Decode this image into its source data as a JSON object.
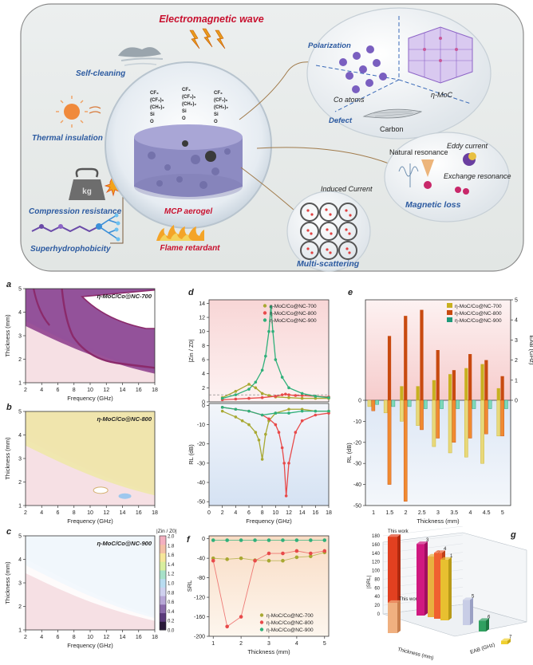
{
  "schematic": {
    "title": "Electromagnetic wave",
    "properties": [
      {
        "label": "Self-cleaning"
      },
      {
        "label": "Thermal insulation"
      },
      {
        "label": "Compression resistance"
      },
      {
        "label": "Superhydrophobicity"
      },
      {
        "label": "Flame retardant"
      },
      {
        "label": "MCP aerogel"
      }
    ],
    "mass_label": "kg",
    "chain_labels": [
      "CF₃",
      "(CF₂)₅",
      "(CH₂)₂",
      "Si",
      "O"
    ],
    "mechanisms": {
      "polarization": "Polarization",
      "defect": "Defect",
      "co_atoms": "Co atoms",
      "moc": "η-MoC",
      "carbon": "Carbon",
      "natural_resonance": "Natural resonance",
      "eddy_current": "Eddy current",
      "exchange_resonance": "Exchange resonance",
      "magnetic_loss": "Magnetic loss",
      "induced_current": "Induced Current",
      "multi_scattering": "Multi-scattering"
    }
  },
  "panels": {
    "a": {
      "letter": "a",
      "title": "η-MoC/Co@NC-700",
      "xlabel": "Frequency (GHz)",
      "ylabel": "Thickness (mm)"
    },
    "b": {
      "letter": "b",
      "title": "η-MoC/Co@NC-800",
      "xlabel": "Frequency (GHz)",
      "ylabel": "Thickness (mm)"
    },
    "c": {
      "letter": "c",
      "title": "η-MoC/Co@NC-900",
      "xlabel": "Frequency (GHz)",
      "ylabel": "Thickness (mm)",
      "colorbar_title": "|Zin / Z0|"
    },
    "d": {
      "letter": "d",
      "xlabel": "Frequency (GHz)",
      "ylabel_top": "|Zin / Z0|",
      "ylabel_bottom": "RL (dB)"
    },
    "e": {
      "letter": "e",
      "xlabel": "Thickness (mm)",
      "ylabel_top": "EAB (GHz)",
      "ylabel_bottom": "RL (dB)"
    },
    "f": {
      "letter": "f",
      "xlabel": "Thickness (mm)",
      "ylabel": "SRL"
    },
    "g": {
      "letter": "g",
      "bar_labels": [
        "This work",
        "This work",
        "3",
        "2",
        "4",
        "1",
        "5",
        "6",
        "7"
      ],
      "axis_labels": [
        "Thickness (mm)",
        "EAB (GHz)",
        "|SRL|"
      ]
    }
  },
  "series_names": [
    "η-MoC/Co@NC-700",
    "η-MoC/Co@NC-800",
    "η-MoC/Co@NC-900"
  ],
  "colors": {
    "s700": "#a8a832",
    "s800": "#e84a4a",
    "s900": "#2fb07a",
    "accent_blue": "#2c5aa0",
    "accent_red": "#c8102e"
  },
  "chart_data": [
    {
      "type": "heatmap",
      "panel": "a",
      "x_ticks": [
        2,
        4,
        6,
        8,
        10,
        12,
        14,
        16,
        18
      ],
      "y_ticks": [
        1,
        2,
        3,
        4,
        5
      ],
      "xlim": [
        2,
        18
      ],
      "ylim": [
        1,
        5
      ]
    },
    {
      "type": "heatmap",
      "panel": "b",
      "x_ticks": [
        2,
        4,
        6,
        8,
        10,
        12,
        14,
        16,
        18
      ],
      "y_ticks": [
        1,
        2,
        3,
        4,
        5
      ],
      "xlim": [
        2,
        18
      ],
      "ylim": [
        1,
        5
      ]
    },
    {
      "type": "heatmap",
      "panel": "c",
      "x_ticks": [
        2,
        4,
        6,
        8,
        10,
        12,
        14,
        16,
        18
      ],
      "y_ticks": [
        1,
        2,
        3,
        4,
        5
      ],
      "xlim": [
        2,
        18
      ],
      "ylim": [
        1,
        5
      ],
      "colorbar_ticks": [
        0.0,
        0.2,
        0.4,
        0.6,
        0.8,
        1.0,
        1.2,
        1.4,
        1.6,
        1.8,
        2.0
      ]
    },
    {
      "type": "line",
      "panel": "d-top",
      "x_ticks": [
        0,
        2,
        4,
        6,
        8,
        10,
        12,
        14,
        16,
        18
      ],
      "y_ticks": [
        0,
        2,
        4,
        6,
        8,
        10,
        12,
        14
      ],
      "xlim": [
        0,
        18
      ],
      "ylim": [
        0,
        14.5
      ],
      "series": [
        {
          "name": "η-MoC/Co@NC-700",
          "x": [
            2,
            4,
            6,
            7,
            8,
            9,
            10,
            12,
            14,
            16,
            18
          ],
          "y": [
            0.6,
            1.5,
            2.5,
            2.0,
            1.2,
            0.9,
            0.7,
            0.6,
            0.5,
            0.5,
            0.5
          ]
        },
        {
          "name": "η-MoC/Co@NC-800",
          "x": [
            2,
            4,
            6,
            8,
            10,
            11,
            11.5,
            12,
            13,
            14,
            16,
            18
          ],
          "y": [
            0.3,
            0.4,
            0.5,
            0.6,
            0.8,
            1.0,
            1.1,
            1.0,
            0.9,
            0.9,
            0.8,
            0.7
          ]
        },
        {
          "name": "η-MoC/Co@NC-900",
          "x": [
            2,
            4,
            6,
            7,
            8,
            8.5,
            9,
            9.3,
            9.6,
            10,
            11,
            12,
            14,
            16,
            18
          ],
          "y": [
            0.5,
            1.0,
            1.8,
            2.8,
            4.5,
            6.5,
            10.0,
            13.5,
            10.0,
            6.0,
            3.5,
            2.0,
            1.2,
            0.8,
            0.6
          ]
        }
      ]
    },
    {
      "type": "line",
      "panel": "d-bottom",
      "x_ticks": [
        0,
        2,
        4,
        6,
        8,
        10,
        12,
        14,
        16,
        18
      ],
      "y_ticks": [
        0,
        -10,
        -20,
        -30,
        -40,
        -50
      ],
      "xlim": [
        0,
        18
      ],
      "ylim": [
        -52,
        1
      ],
      "series": [
        {
          "name": "η-MoC/Co@NC-700",
          "x": [
            2,
            4,
            5,
            6,
            7,
            7.5,
            8,
            8.5,
            9,
            10,
            12,
            14,
            16,
            18
          ],
          "y": [
            -3,
            -6,
            -8,
            -10,
            -14,
            -18,
            -28,
            -15,
            -8,
            -4,
            -2,
            -2,
            -3,
            -3
          ]
        },
        {
          "name": "η-MoC/Co@NC-800",
          "x": [
            2,
            4,
            6,
            8,
            9,
            10,
            10.5,
            11,
            11.3,
            11.6,
            12,
            13,
            14,
            16,
            18
          ],
          "y": [
            -1,
            -2,
            -3,
            -5,
            -7,
            -10,
            -14,
            -22,
            -30,
            -47,
            -30,
            -14,
            -8,
            -5,
            -4
          ]
        },
        {
          "name": "η-MoC/Co@NC-900",
          "x": [
            2,
            4,
            6,
            8,
            10,
            12,
            14,
            16,
            18
          ],
          "y": [
            -1,
            -2,
            -3,
            -5,
            -4,
            -4,
            -3,
            -3,
            -3
          ]
        }
      ]
    },
    {
      "type": "bar",
      "panel": "e",
      "categories": [
        1,
        1.5,
        2,
        2.5,
        3,
        3.5,
        4,
        4.5,
        5
      ],
      "y_ticks_top": [
        0,
        1,
        2,
        3,
        4,
        5
      ],
      "y_ticks_bottom": [
        0,
        -10,
        -20,
        -30,
        -40,
        -50
      ],
      "ylim_top": [
        0,
        5
      ],
      "ylim_bottom": [
        -50,
        0
      ],
      "eab": [
        {
          "name": "η-MoC/Co@NC-700",
          "values": [
            0.0,
            0.0,
            0.7,
            0.7,
            1.0,
            1.3,
            1.6,
            1.8,
            0.6
          ]
        },
        {
          "name": "η-MoC/Co@NC-800",
          "values": [
            0.0,
            3.2,
            4.2,
            4.5,
            2.5,
            1.5,
            2.3,
            2.0,
            1.2
          ]
        },
        {
          "name": "η-MoC/Co@NC-900",
          "values": [
            0.0,
            0.0,
            0.0,
            0.0,
            0.0,
            0.0,
            0.0,
            0.0,
            0.0
          ]
        }
      ],
      "rl": [
        {
          "name": "η-MoC/Co@NC-700",
          "values": [
            -3,
            -6,
            -10,
            -12,
            -22,
            -25,
            -27,
            -30,
            -17
          ]
        },
        {
          "name": "η-MoC/Co@NC-800",
          "values": [
            -5,
            -40,
            -48,
            -14,
            -18,
            -20,
            -18,
            -16,
            -17
          ]
        },
        {
          "name": "η-MoC/Co@NC-900",
          "values": [
            -2,
            -3,
            -3,
            -4,
            -4,
            -4,
            -4,
            -4,
            -4
          ]
        }
      ]
    },
    {
      "type": "line",
      "panel": "f",
      "x_ticks": [
        1,
        2,
        3,
        4,
        5
      ],
      "y_ticks": [
        0,
        -40,
        -80,
        -120,
        -160,
        -200
      ],
      "xlim": [
        0.85,
        5.15
      ],
      "ylim": [
        -200,
        6
      ],
      "series": [
        {
          "name": "η-MoC/Co@NC-700",
          "x": [
            1,
            1.5,
            2,
            2.5,
            3,
            3.5,
            4,
            4.5,
            5
          ],
          "y": [
            -40,
            -42,
            -40,
            -44,
            -45,
            -45,
            -38,
            -36,
            -28
          ]
        },
        {
          "name": "η-MoC/Co@NC-800",
          "x": [
            1,
            1.5,
            2,
            2.5,
            3,
            3.5,
            4,
            4.5,
            5
          ],
          "y": [
            -45,
            -180,
            -160,
            -45,
            -30,
            -30,
            -25,
            -30,
            -25
          ]
        },
        {
          "name": "η-MoC/Co@NC-900",
          "x": [
            1,
            1.5,
            2,
            2.5,
            3,
            3.5,
            4,
            4.5,
            5
          ],
          "y": [
            -3,
            -3,
            -3,
            -3,
            -3,
            -3,
            -3,
            -3,
            -3
          ]
        }
      ]
    },
    {
      "type": "bar",
      "panel": "g",
      "y_ticks": [
        0,
        20,
        40,
        60,
        80,
        100,
        120,
        140,
        160,
        180
      ],
      "ylim": [
        0,
        180
      ],
      "categories": [
        "This work",
        "This work",
        "3",
        "2",
        "4",
        "1",
        "5",
        "6",
        "7"
      ],
      "values": [
        178,
        70,
        165,
        140,
        152,
        140,
        58,
        25,
        8
      ]
    }
  ]
}
